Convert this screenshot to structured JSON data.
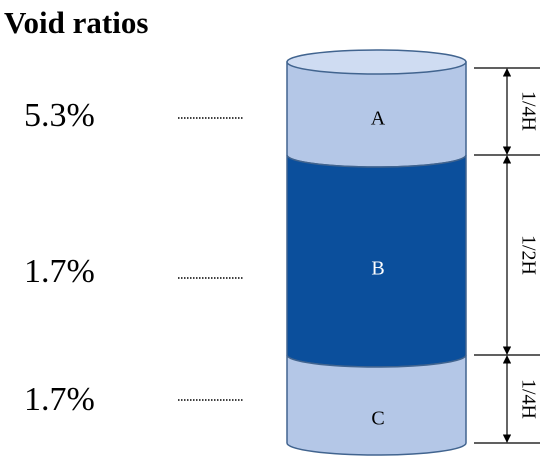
{
  "title": "Void ratios",
  "sections": [
    {
      "label": "A",
      "void_ratio": "5.3%",
      "height": "1/4H"
    },
    {
      "label": "B",
      "void_ratio": "1.7%",
      "height": "1/2H"
    },
    {
      "label": "C",
      "void_ratio": "1.7%",
      "height": "1/4H"
    }
  ]
}
